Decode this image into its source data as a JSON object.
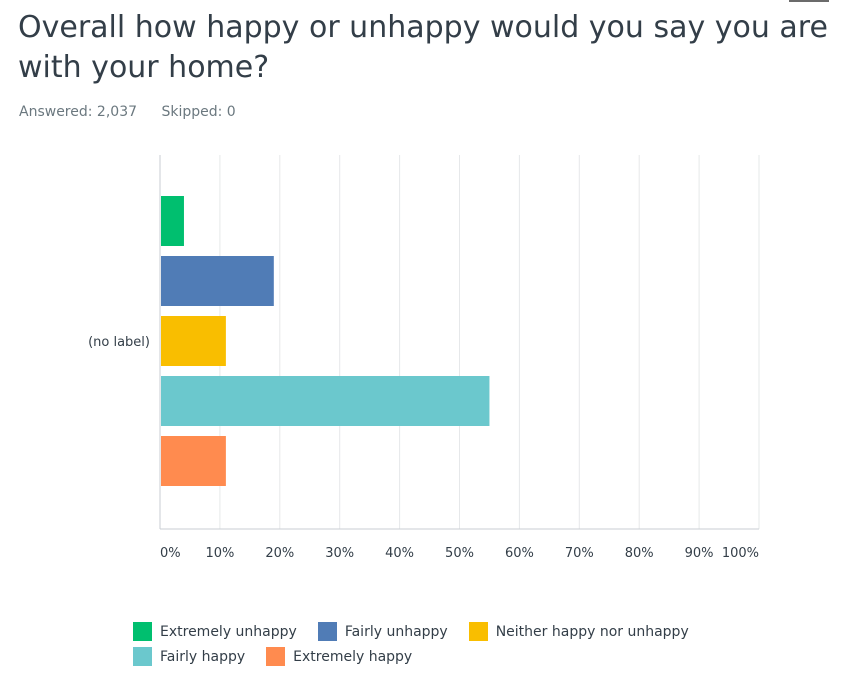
{
  "question": {
    "title": "Overall how happy or unhappy would you say you are with your home?",
    "answered": "Answered: 2,037",
    "skipped": "Skipped: 0"
  },
  "chart_data": {
    "type": "bar",
    "orientation": "horizontal",
    "categories": [
      "(no label)"
    ],
    "series": [
      {
        "name": "Extremely unhappy",
        "values": [
          4
        ],
        "color": "#00bf6f"
      },
      {
        "name": "Fairly unhappy",
        "values": [
          19
        ],
        "color": "#507cb6"
      },
      {
        "name": "Neither happy nor unhappy",
        "values": [
          11
        ],
        "color": "#f9be00"
      },
      {
        "name": "Fairly happy",
        "values": [
          55
        ],
        "color": "#6bc8cd"
      },
      {
        "name": "Extremely happy",
        "values": [
          11
        ],
        "color": "#ff8b4f"
      }
    ],
    "xlim": [
      0,
      100
    ],
    "xticks": [
      "0%",
      "10%",
      "20%",
      "30%",
      "40%",
      "50%",
      "60%",
      "70%",
      "80%",
      "90%",
      "100%"
    ],
    "grid": true,
    "legend": "bottom"
  }
}
